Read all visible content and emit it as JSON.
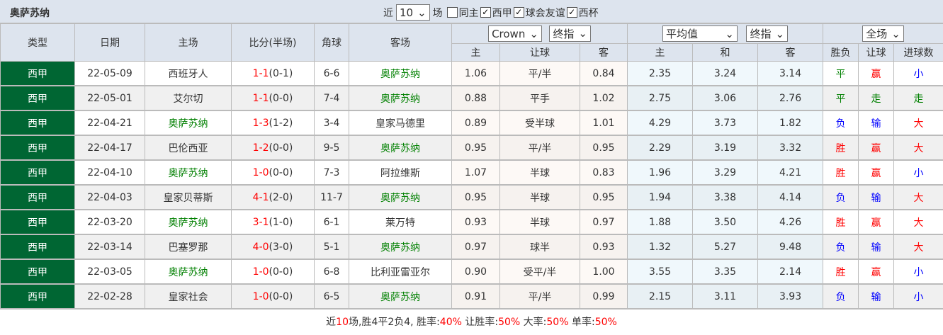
{
  "title": "奥萨苏纳",
  "filters": {
    "recent_prefix": "近",
    "recent_value": "10",
    "recent_suffix": "场",
    "same_home": "同主",
    "same_home_checked": false,
    "leagues": [
      {
        "label": "西甲",
        "checked": true
      },
      {
        "label": "球会友谊",
        "checked": true
      },
      {
        "label": "西杯",
        "checked": true
      }
    ]
  },
  "headers": {
    "type": "类型",
    "date": "日期",
    "home": "主场",
    "score": "比分(半场)",
    "corner": "角球",
    "away": "客场",
    "ah_company": "Crown",
    "ah_mode": "终指",
    "ah_home": "主",
    "ah_line": "让球",
    "ah_away": "客",
    "eu_company": "平均值",
    "eu_mode": "终指",
    "eu_home": "主",
    "eu_draw": "和",
    "eu_away": "客",
    "range": "全场",
    "res_wl": "胜负",
    "res_ah": "让球",
    "res_ou": "进球数"
  },
  "colors": {
    "type_bg": "#006633",
    "team_highlight": "#008000",
    "win": "#ff0000",
    "draw": "#008000",
    "loss": "#0000ff"
  },
  "highlight_team": "奥萨苏纳",
  "rows": [
    {
      "type": "西甲",
      "date": "22-05-09",
      "home": "西班牙人",
      "score": "1-1",
      "ht": "(0-1)",
      "corner": "6-6",
      "away": "奥萨苏纳",
      "ah_h": "1.06",
      "ah_line": "平/半",
      "ah_a": "0.84",
      "eu_h": "2.35",
      "eu_d": "3.24",
      "eu_a": "3.14",
      "wl": "平",
      "ah": "赢",
      "ou": "小"
    },
    {
      "type": "西甲",
      "date": "22-05-01",
      "home": "艾尔切",
      "score": "1-1",
      "ht": "(0-0)",
      "corner": "7-4",
      "away": "奥萨苏纳",
      "ah_h": "0.88",
      "ah_line": "平手",
      "ah_a": "1.02",
      "eu_h": "2.75",
      "eu_d": "3.06",
      "eu_a": "2.76",
      "wl": "平",
      "ah": "走",
      "ou": "走"
    },
    {
      "type": "西甲",
      "date": "22-04-21",
      "home": "奥萨苏纳",
      "score": "1-3",
      "ht": "(1-2)",
      "corner": "3-4",
      "away": "皇家马德里",
      "ah_h": "0.89",
      "ah_line": "受半球",
      "ah_a": "1.01",
      "eu_h": "4.29",
      "eu_d": "3.73",
      "eu_a": "1.82",
      "wl": "负",
      "ah": "输",
      "ou": "大"
    },
    {
      "type": "西甲",
      "date": "22-04-17",
      "home": "巴伦西亚",
      "score": "1-2",
      "ht": "(0-0)",
      "corner": "9-5",
      "away": "奥萨苏纳",
      "ah_h": "0.95",
      "ah_line": "平/半",
      "ah_a": "0.95",
      "eu_h": "2.29",
      "eu_d": "3.19",
      "eu_a": "3.32",
      "wl": "胜",
      "ah": "赢",
      "ou": "大"
    },
    {
      "type": "西甲",
      "date": "22-04-10",
      "home": "奥萨苏纳",
      "score": "1-0",
      "ht": "(0-0)",
      "corner": "7-3",
      "away": "阿拉维斯",
      "ah_h": "1.07",
      "ah_line": "半球",
      "ah_a": "0.83",
      "eu_h": "1.96",
      "eu_d": "3.29",
      "eu_a": "4.21",
      "wl": "胜",
      "ah": "赢",
      "ou": "小"
    },
    {
      "type": "西甲",
      "date": "22-04-03",
      "home": "皇家贝蒂斯",
      "score": "4-1",
      "ht": "(2-0)",
      "corner": "11-7",
      "away": "奥萨苏纳",
      "ah_h": "0.95",
      "ah_line": "半球",
      "ah_a": "0.95",
      "eu_h": "1.94",
      "eu_d": "3.38",
      "eu_a": "4.14",
      "wl": "负",
      "ah": "输",
      "ou": "大"
    },
    {
      "type": "西甲",
      "date": "22-03-20",
      "home": "奥萨苏纳",
      "score": "3-1",
      "ht": "(1-0)",
      "corner": "6-1",
      "away": "莱万特",
      "ah_h": "0.93",
      "ah_line": "半球",
      "ah_a": "0.97",
      "eu_h": "1.88",
      "eu_d": "3.50",
      "eu_a": "4.26",
      "wl": "胜",
      "ah": "赢",
      "ou": "大"
    },
    {
      "type": "西甲",
      "date": "22-03-14",
      "home": "巴塞罗那",
      "score": "4-0",
      "ht": "(3-0)",
      "corner": "5-1",
      "away": "奥萨苏纳",
      "ah_h": "0.97",
      "ah_line": "球半",
      "ah_a": "0.93",
      "eu_h": "1.32",
      "eu_d": "5.27",
      "eu_a": "9.48",
      "wl": "负",
      "ah": "输",
      "ou": "大"
    },
    {
      "type": "西甲",
      "date": "22-03-05",
      "home": "奥萨苏纳",
      "score": "1-0",
      "ht": "(0-0)",
      "corner": "6-8",
      "away": "比利亚雷亚尔",
      "ah_h": "0.90",
      "ah_line": "受平/半",
      "ah_a": "1.00",
      "eu_h": "3.55",
      "eu_d": "3.35",
      "eu_a": "2.14",
      "wl": "胜",
      "ah": "赢",
      "ou": "小"
    },
    {
      "type": "西甲",
      "date": "22-02-28",
      "home": "皇家社会",
      "score": "1-0",
      "ht": "(0-0)",
      "corner": "6-5",
      "away": "奥萨苏纳",
      "ah_h": "0.91",
      "ah_line": "平/半",
      "ah_a": "0.99",
      "eu_h": "2.15",
      "eu_d": "3.11",
      "eu_a": "3.93",
      "wl": "负",
      "ah": "输",
      "ou": "小"
    }
  ],
  "summary": [
    {
      "t": "近",
      "red": false
    },
    {
      "t": "10",
      "red": true
    },
    {
      "t": "场,胜4平2负4, 胜率:",
      "red": false
    },
    {
      "t": "40%",
      "red": true
    },
    {
      "t": " 让胜率:",
      "red": false
    },
    {
      "t": "50%",
      "red": true
    },
    {
      "t": " 大率:",
      "red": false
    },
    {
      "t": "50%",
      "red": true
    },
    {
      "t": " 单率:",
      "red": false
    },
    {
      "t": "50%",
      "red": true
    }
  ]
}
